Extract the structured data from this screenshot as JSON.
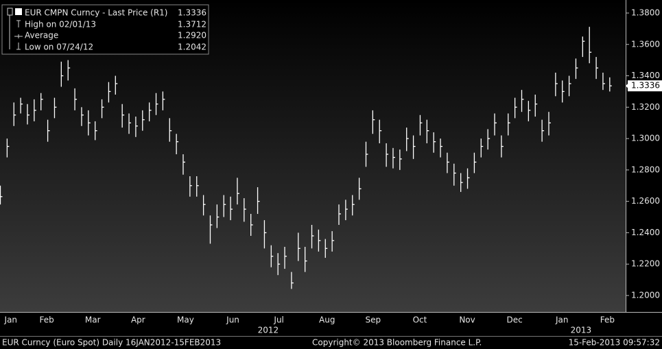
{
  "chart_data": {
    "type": "ohlc",
    "legend": [
      {
        "text": "EUR CMPN Curncy - Last Price (R1)",
        "value": 1.3336
      },
      {
        "text": "High on 02/01/13",
        "value": 1.3712
      },
      {
        "text": "Average",
        "value": 1.292,
        "value_label": "1.2920"
      },
      {
        "text": "Low on 07/24/12",
        "value": 1.2042
      }
    ],
    "last_price": {
      "value": 1.3336
    },
    "color": "#ffffff",
    "high": [
      1.27,
      1.3,
      1.323,
      1.326,
      1.322,
      1.325,
      1.329,
      1.312,
      1.326,
      1.349,
      1.35,
      1.332,
      1.32,
      1.318,
      1.311,
      1.325,
      1.336,
      1.34,
      1.322,
      1.316,
      1.314,
      1.318,
      1.323,
      1.329,
      1.33,
      1.313,
      1.303,
      1.29,
      1.276,
      1.276,
      1.264,
      1.251,
      1.258,
      1.264,
      1.263,
      1.275,
      1.262,
      1.252,
      1.269,
      1.248,
      1.232,
      1.227,
      1.231,
      1.215,
      1.24,
      1.231,
      1.245,
      1.242,
      1.236,
      1.241,
      1.258,
      1.261,
      1.264,
      1.275,
      1.298,
      1.318,
      1.312,
      1.297,
      1.294,
      1.293,
      1.307,
      1.302,
      1.315,
      1.312,
      1.304,
      1.3,
      1.291,
      1.284,
      1.278,
      1.281,
      1.291,
      1.3,
      1.306,
      1.316,
      1.302,
      1.316,
      1.326,
      1.331,
      1.324,
      1.328,
      1.312,
      1.317,
      1.342,
      1.337,
      1.34,
      1.351,
      1.365,
      1.3712,
      1.352,
      1.342,
      1.339
    ],
    "low": [
      1.258,
      1.288,
      1.308,
      1.316,
      1.309,
      1.311,
      1.318,
      1.298,
      1.313,
      1.333,
      1.337,
      1.318,
      1.308,
      1.302,
      1.299,
      1.313,
      1.323,
      1.328,
      1.307,
      1.303,
      1.301,
      1.305,
      1.311,
      1.315,
      1.318,
      1.298,
      1.29,
      1.277,
      1.263,
      1.263,
      1.251,
      1.233,
      1.243,
      1.25,
      1.248,
      1.258,
      1.247,
      1.238,
      1.252,
      1.23,
      1.218,
      1.213,
      1.217,
      1.2042,
      1.222,
      1.215,
      1.23,
      1.228,
      1.224,
      1.228,
      1.245,
      1.248,
      1.251,
      1.261,
      1.282,
      1.303,
      1.297,
      1.282,
      1.281,
      1.28,
      1.292,
      1.287,
      1.302,
      1.297,
      1.291,
      1.288,
      1.278,
      1.27,
      1.266,
      1.268,
      1.278,
      1.288,
      1.293,
      1.302,
      1.288,
      1.302,
      1.313,
      1.317,
      1.311,
      1.314,
      1.298,
      1.302,
      1.327,
      1.323,
      1.327,
      1.338,
      1.352,
      1.348,
      1.338,
      1.331,
      1.33
    ],
    "close": [
      1.263,
      1.295,
      1.315,
      1.322,
      1.315,
      1.318,
      1.325,
      1.305,
      1.32,
      1.34,
      1.345,
      1.325,
      1.315,
      1.31,
      1.305,
      1.32,
      1.33,
      1.335,
      1.315,
      1.31,
      1.308,
      1.312,
      1.318,
      1.322,
      1.325,
      1.305,
      1.298,
      1.285,
      1.27,
      1.27,
      1.258,
      1.245,
      1.25,
      1.258,
      1.255,
      1.265,
      1.255,
      1.245,
      1.26,
      1.24,
      1.225,
      1.22,
      1.225,
      1.208,
      1.23,
      1.222,
      1.238,
      1.235,
      1.23,
      1.235,
      1.252,
      1.255,
      1.258,
      1.268,
      1.29,
      1.312,
      1.305,
      1.29,
      1.288,
      1.287,
      1.3,
      1.295,
      1.31,
      1.305,
      1.298,
      1.295,
      1.285,
      1.278,
      1.272,
      1.275,
      1.285,
      1.295,
      1.3,
      1.31,
      1.295,
      1.31,
      1.32,
      1.325,
      1.318,
      1.322,
      1.305,
      1.31,
      1.335,
      1.33,
      1.335,
      1.345,
      1.362,
      1.355,
      1.345,
      1.335,
      1.3336
    ],
    "xlim": [
      0,
      92.4
    ],
    "xticks": [
      {
        "value": 1.6,
        "label": "Jan"
      },
      {
        "value": 6.9,
        "label": "Feb"
      },
      {
        "value": 13.7,
        "label": "Mar"
      },
      {
        "value": 20.4,
        "label": "Apr"
      },
      {
        "value": 27.4,
        "label": "May"
      },
      {
        "value": 34.4,
        "label": "Jun"
      },
      {
        "value": 41.2,
        "label": "Jul"
      },
      {
        "value": 48.3,
        "label": "Aug"
      },
      {
        "value": 55.1,
        "label": "Sep"
      },
      {
        "value": 62,
        "label": "Oct"
      },
      {
        "value": 69,
        "label": "Nov"
      },
      {
        "value": 76,
        "label": "Dec"
      },
      {
        "value": 83,
        "label": "Jan"
      },
      {
        "value": 89.7,
        "label": "Feb"
      }
    ],
    "year_ticks": [
      {
        "value": 39.6,
        "label": "2012"
      },
      {
        "value": 85.8,
        "label": "2013"
      }
    ],
    "ylim": [
      1.1895,
      1.3883
    ],
    "yticks": [
      {
        "value": 1.2,
        "label": "1.2000"
      },
      {
        "value": 1.22,
        "label": "1.2200"
      },
      {
        "value": 1.24,
        "label": "1.2400"
      },
      {
        "value": 1.26,
        "label": "1.2600"
      },
      {
        "value": 1.28,
        "label": "1.2800"
      },
      {
        "value": 1.3,
        "label": "1.3000"
      },
      {
        "value": 1.32,
        "label": "1.3200"
      },
      {
        "value": 1.34,
        "label": "1.3400"
      },
      {
        "value": 1.36,
        "label": "1.3600"
      },
      {
        "value": 1.38,
        "label": "1.3800"
      }
    ],
    "footer": {
      "security": "EUR Curncy (Euro Spot)  Daily 16JAN2012-15FEB2013",
      "copyright": "Copyright© 2013 Bloomberg Finance L.P.",
      "timestamp": "15-Feb-2013 09:57:32"
    }
  }
}
